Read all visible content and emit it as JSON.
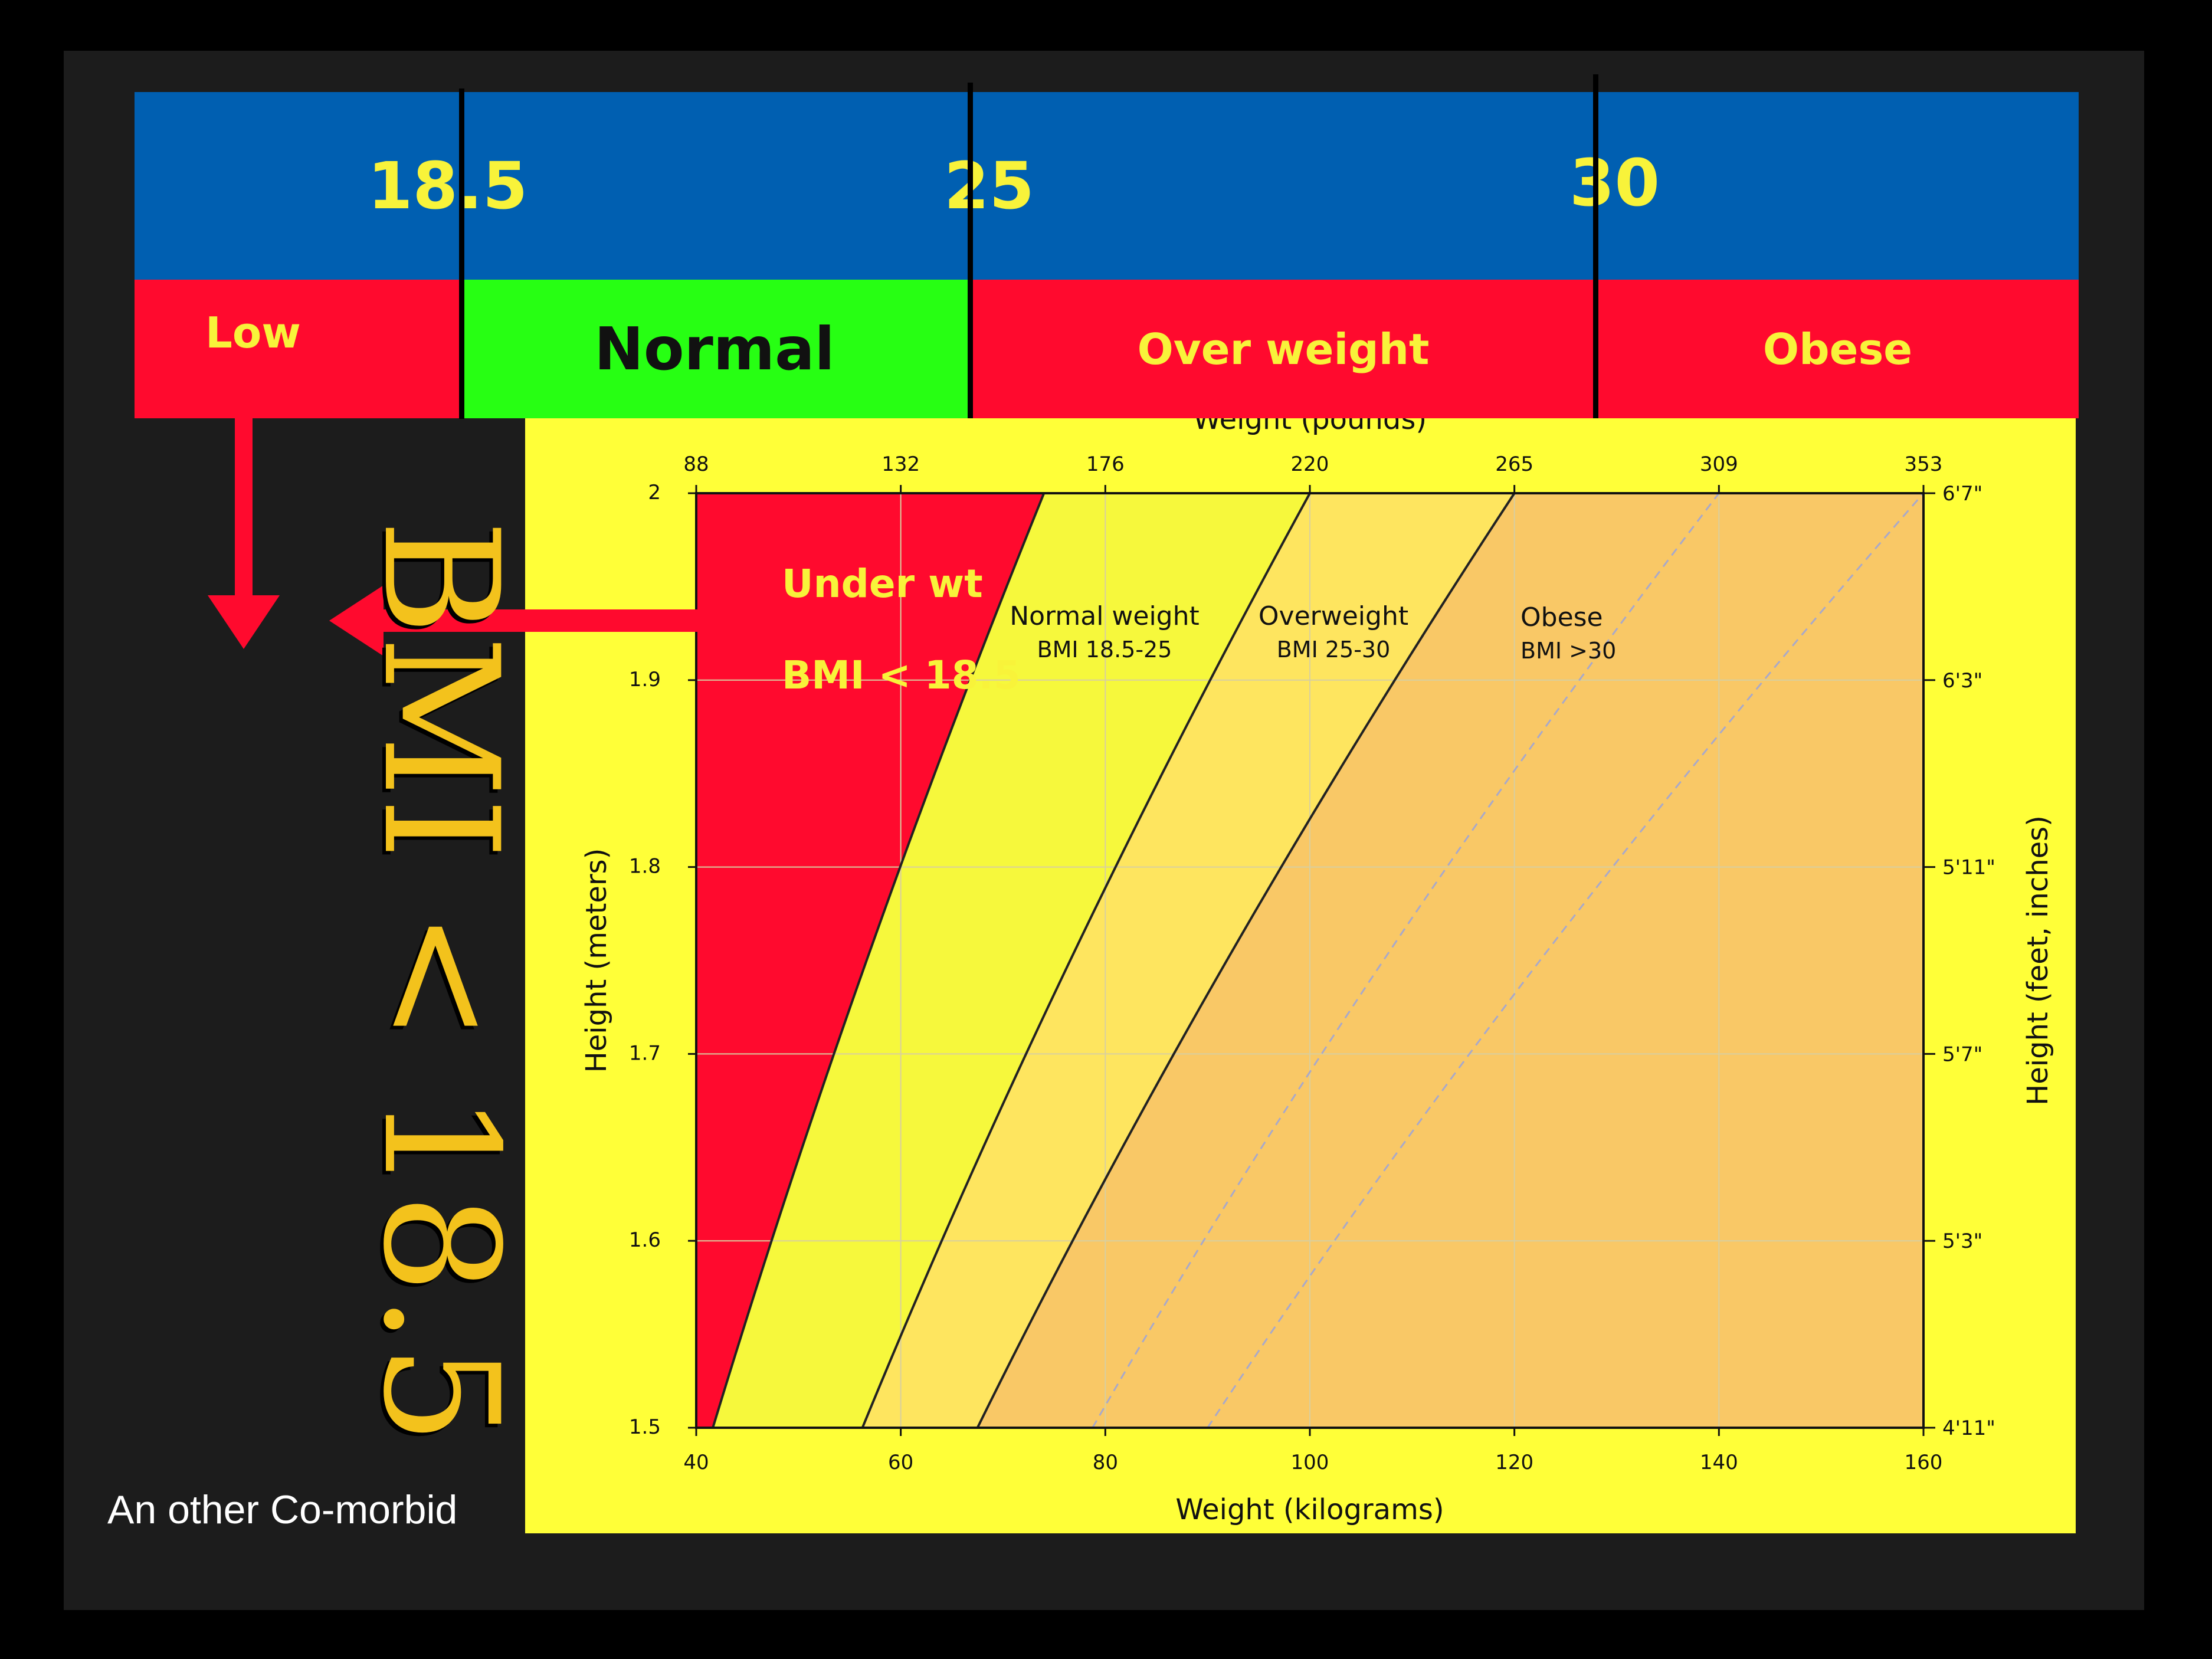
{
  "bmi_scale": {
    "thresholds": [
      "18.5",
      "25",
      "30"
    ],
    "categories": [
      "Low",
      "Normal",
      "Over weight",
      "Obese"
    ]
  },
  "big_label": "BMI < 18.5",
  "footnote": "An other Co-morbid",
  "chart_data": {
    "type": "area",
    "xlabel": "Weight (kilograms)",
    "ylabel": "Height (meters)",
    "x2label": "Weight (pounds)",
    "y2label": "Height (feet, inches)",
    "xlim": [
      40,
      160
    ],
    "ylim": [
      1.5,
      2.0
    ],
    "xticks": [
      "40",
      "60",
      "80",
      "100",
      "120",
      "140",
      "160"
    ],
    "yticks": [
      "1.5",
      "1.6",
      "1.7",
      "1.8",
      "1.9",
      "2"
    ],
    "x2ticks": [
      {
        "label": "88",
        "kg": 40
      },
      {
        "label": "132",
        "kg": 60
      },
      {
        "label": "176",
        "kg": 80
      },
      {
        "label": "220",
        "kg": 100
      },
      {
        "label": "265",
        "kg": 120
      },
      {
        "label": "309",
        "kg": 140
      },
      {
        "label": "353",
        "kg": 160
      }
    ],
    "y2ticks": [
      {
        "label": "4'11\"",
        "m": 1.5
      },
      {
        "label": "5'3\"",
        "m": 1.6
      },
      {
        "label": "5'7\"",
        "m": 1.7
      },
      {
        "label": "5'11\"",
        "m": 1.8
      },
      {
        "label": "6'3\"",
        "m": 1.9
      },
      {
        "label": "6'7\"",
        "m": 2.0
      }
    ],
    "regions": [
      {
        "name": "Under wt",
        "sublabel": "BMI < 18.5",
        "bmi_min": 0,
        "bmi_max": 18.5,
        "color": "#ff0a2e"
      },
      {
        "name": "Normal weight",
        "sublabel": "BMI 18.5-25",
        "bmi_min": 18.5,
        "bmi_max": 25,
        "color": "#f6f83c"
      },
      {
        "name": "Overweight",
        "sublabel": "BMI 25-30",
        "bmi_min": 25,
        "bmi_max": 30,
        "color": "#fee55f"
      },
      {
        "name": "Obese",
        "sublabel": "BMI >30",
        "bmi_min": 30,
        "bmi_max": 40,
        "color": "#f9c866"
      }
    ],
    "extra_lines_bmi": [
      35,
      40
    ]
  },
  "colors": {
    "scale_blue": "#005fb1",
    "label_red": "#ff0a2e",
    "label_green": "#27ff13",
    "label_yellow": "#f8f33a",
    "panel_yellow": "#ffff38"
  }
}
